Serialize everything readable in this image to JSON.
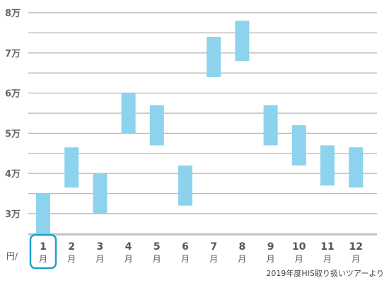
{
  "chart_data": {
    "type": "bar",
    "subtype": "floating-range",
    "unit_label": "円/",
    "month_unit": "月",
    "categories": [
      "1",
      "2",
      "3",
      "4",
      "5",
      "6",
      "7",
      "8",
      "9",
      "10",
      "11",
      "12"
    ],
    "ranges": [
      [
        25000,
        35000
      ],
      [
        36500,
        46500
      ],
      [
        30000,
        40000
      ],
      [
        50000,
        60000
      ],
      [
        47000,
        57000
      ],
      [
        32000,
        42000
      ],
      [
        64000,
        74000
      ],
      [
        68000,
        78000
      ],
      [
        47000,
        57000
      ],
      [
        42000,
        52000
      ],
      [
        37000,
        47000
      ],
      [
        36500,
        46500
      ]
    ],
    "yticks": [
      {
        "value": 30000,
        "label": "3万"
      },
      {
        "value": 40000,
        "label": "4万"
      },
      {
        "value": 50000,
        "label": "5万"
      },
      {
        "value": 60000,
        "label": "6万"
      },
      {
        "value": 70000,
        "label": "7万"
      },
      {
        "value": 80000,
        "label": "8万"
      }
    ],
    "ylim": [
      25000,
      80000
    ],
    "grid": true,
    "highlighted_category": "1",
    "colors": {
      "bar": "#8dd3ee",
      "grid": "#bbbbbb",
      "highlight": "#1ba1c9"
    }
  },
  "source_note": "2019年度HIS取り扱いツアーより"
}
